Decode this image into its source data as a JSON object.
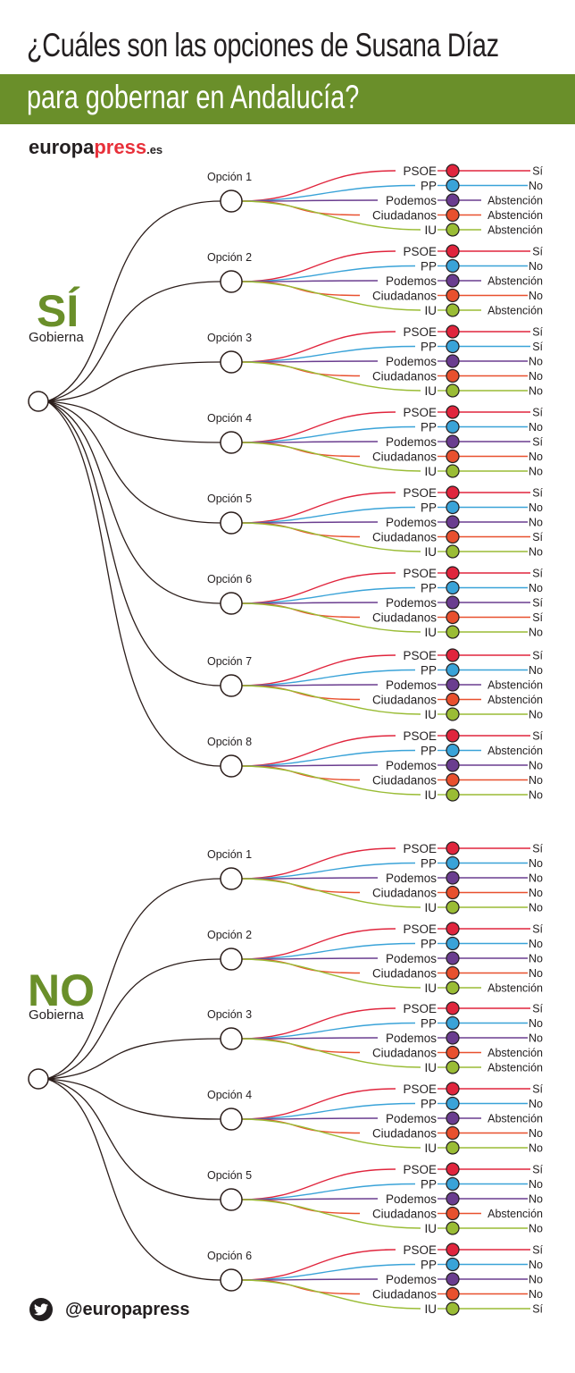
{
  "header": {
    "title_line1": "¿Cuáles son las opciones de Susana Díaz",
    "title_line2": "para gobernar en Andalucía?",
    "brand_part1": "europa",
    "brand_part2": "press",
    "brand_part3": ".es"
  },
  "colors": {
    "accent_green": "#6a8f2a",
    "PSOE": "#e0253d",
    "PP": "#3aa3d8",
    "Podemos": "#6a3d8f",
    "Ciudadanos": "#e8502e",
    "IU": "#9abc35"
  },
  "parties": [
    "PSOE",
    "PP",
    "Podemos",
    "Ciudadanos",
    "IU"
  ],
  "trees": [
    {
      "label": "SÍ",
      "sublabel": "Gobierna",
      "options": [
        {
          "name": "Opción 1",
          "votes": [
            "Sí",
            "No",
            "Abstención",
            "Abstención",
            "Abstención"
          ]
        },
        {
          "name": "Opción 2",
          "votes": [
            "Sí",
            "No",
            "Abstención",
            "No",
            "Abstención"
          ]
        },
        {
          "name": "Opción 3",
          "votes": [
            "Sí",
            "Sí",
            "No",
            "No",
            "No"
          ]
        },
        {
          "name": "Opción 4",
          "votes": [
            "Sí",
            "No",
            "Sí",
            "No",
            "No"
          ]
        },
        {
          "name": "Opción 5",
          "votes": [
            "Sí",
            "No",
            "No",
            "Sí",
            "No"
          ]
        },
        {
          "name": "Opción 6",
          "votes": [
            "Sí",
            "No",
            "Sí",
            "Sí",
            "No"
          ]
        },
        {
          "name": "Opción 7",
          "votes": [
            "Sí",
            "No",
            "Abstención",
            "Abstención",
            "No"
          ]
        },
        {
          "name": "Opción 8",
          "votes": [
            "Sí",
            "Abstención",
            "No",
            "No",
            "No"
          ]
        }
      ]
    },
    {
      "label": "NO",
      "sublabel": "Gobierna",
      "options": [
        {
          "name": "Opción 1",
          "votes": [
            "Sí",
            "No",
            "No",
            "No",
            "No"
          ]
        },
        {
          "name": "Opción 2",
          "votes": [
            "Sí",
            "No",
            "No",
            "No",
            "Abstención"
          ]
        },
        {
          "name": "Opción 3",
          "votes": [
            "Sí",
            "No",
            "No",
            "Abstención",
            "Abstención"
          ]
        },
        {
          "name": "Opción 4",
          "votes": [
            "Sí",
            "No",
            "Abstención",
            "No",
            "No"
          ]
        },
        {
          "name": "Opción 5",
          "votes": [
            "Sí",
            "No",
            "No",
            "Abstención",
            "No"
          ]
        },
        {
          "name": "Opción 6",
          "votes": [
            "Sí",
            "No",
            "No",
            "No",
            "Sí"
          ]
        }
      ]
    }
  ],
  "footer": {
    "social_icon": "twitter-icon",
    "handle": "@europapress"
  }
}
